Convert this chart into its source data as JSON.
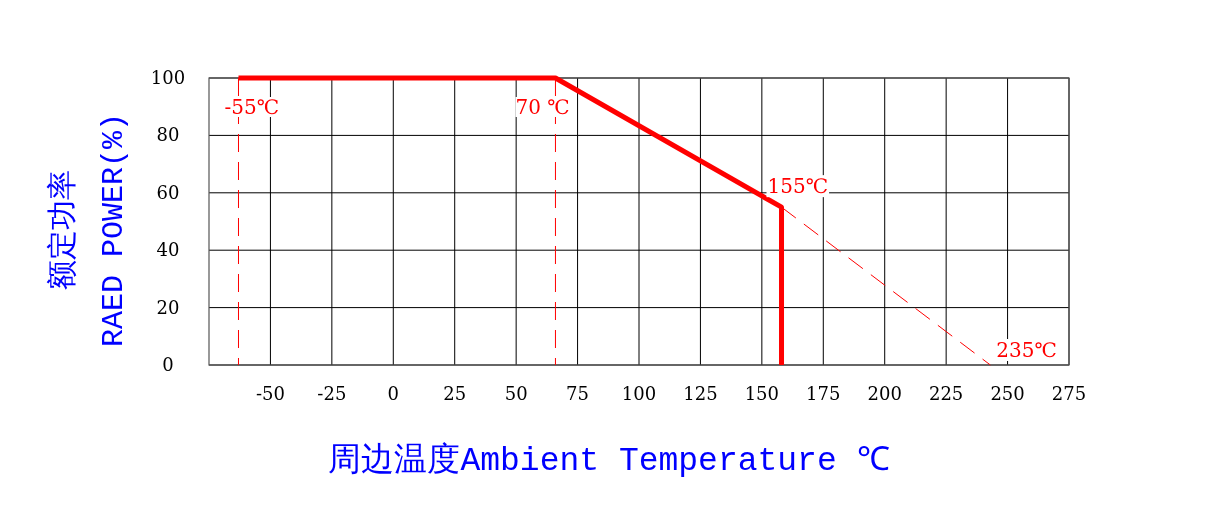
{
  "chart_data": {
    "type": "line",
    "xlabel": "周边温度Ambient Temperature ℃",
    "ylabel": "额定功率\nRAED POWER(%)",
    "xlim": [
      -75,
      275
    ],
    "xticks": [
      -50,
      -25,
      0,
      25,
      50,
      75,
      100,
      125,
      150,
      175,
      200,
      225,
      250,
      275
    ],
    "ylim": [
      0,
      100
    ],
    "yticks": [
      0,
      20,
      40,
      60,
      80,
      100
    ],
    "grid": true,
    "series": [
      {
        "color": "#ff0000",
        "line_style": "solid",
        "x": [
          -63,
          66,
          158,
          158
        ],
        "values": [
          100,
          100,
          55,
          0
        ]
      },
      {
        "color": "#ff0000",
        "line_style": "dashed",
        "x": [
          158,
          243
        ],
        "values": [
          55,
          0
        ]
      }
    ],
    "ref_lines": [
      {
        "axis": "x",
        "value": -63,
        "label": "-55℃",
        "color": "#ff0000",
        "line_style": "dashed"
      },
      {
        "axis": "x",
        "value": 66,
        "label": "70 ℃",
        "color": "#ff0000",
        "line_style": "dashed"
      }
    ],
    "annotations": [
      {
        "text": "155℃",
        "x": 158,
        "y": 55
      },
      {
        "text": "235℃",
        "x": 243,
        "y": 0
      }
    ]
  }
}
